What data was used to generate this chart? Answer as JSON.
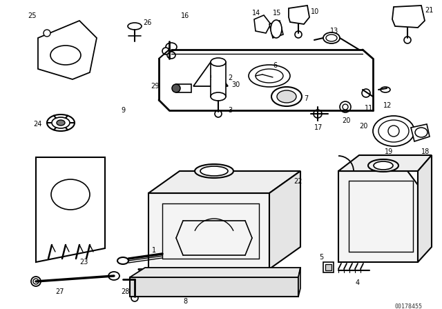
{
  "background_color": "#ffffff",
  "part_number": "00178455",
  "fig_width": 6.4,
  "fig_height": 4.48,
  "dpi": 100,
  "line_color": "#000000",
  "text_color": "#000000"
}
